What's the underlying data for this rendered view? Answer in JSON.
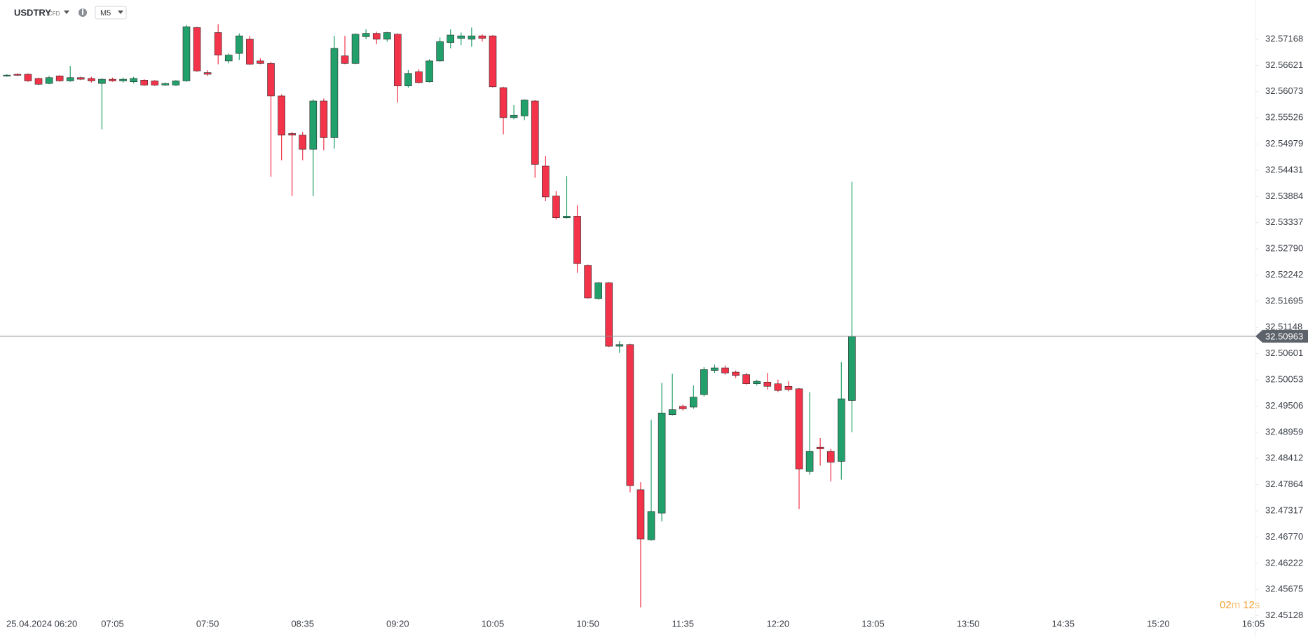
{
  "header": {
    "symbol": "USDTRY",
    "instrument_type": "CFD",
    "timeframe": "M5"
  },
  "countdown": {
    "minutes": "02",
    "minutes_unit": "m",
    "seconds": "12",
    "seconds_unit": "s"
  },
  "chart_data": {
    "type": "candlestick",
    "up_color": "#22a06b",
    "down_color": "#f23349",
    "grid": false,
    "current_price": 32.50963,
    "ylim": [
      32.45093,
      32.57987
    ],
    "yticks": [
      32.57168,
      32.56621,
      32.56073,
      32.55526,
      32.54979,
      32.54431,
      32.53884,
      32.53337,
      {
        "value": 32.5279,
        "label": "32.52790"
      },
      32.52242,
      32.51695,
      32.51148,
      32.50601,
      32.50053,
      32.49506,
      32.48959,
      32.48412,
      32.47864,
      32.47317,
      {
        "value": 32.4677,
        "label": "32.46770"
      },
      32.46222,
      32.45675,
      32.45128
    ],
    "xlim": [
      -0.65,
      118.2
    ],
    "xticks": [
      {
        "value": 1,
        "label": "25.04.2024 06:20"
      },
      {
        "value": 10,
        "label": "07:05"
      },
      {
        "value": 19,
        "label": "07:50"
      },
      {
        "value": 28,
        "label": "08:35"
      },
      {
        "value": 37,
        "label": "09:20"
      },
      {
        "value": 46,
        "label": "10:05"
      },
      {
        "value": 55,
        "label": "10:50"
      },
      {
        "value": 64,
        "label": "11:35"
      },
      {
        "value": 73,
        "label": "12:20"
      },
      {
        "value": 82,
        "label": "13:05"
      },
      {
        "value": 91,
        "label": "13:50"
      },
      {
        "value": 100,
        "label": "14:35"
      },
      {
        "value": 109,
        "label": "15:20"
      },
      {
        "value": 118,
        "label": "16:05"
      }
    ],
    "open": [
      32.56401,
      32.56436,
      32.56436,
      32.56349,
      32.56244,
      32.56401,
      32.56297,
      32.56366,
      32.56349,
      32.56244,
      32.56332,
      32.56297,
      32.56279,
      32.56314,
      32.56297,
      32.5621,
      32.5621,
      32.56297,
      32.57412,
      32.56471,
      32.57307,
      32.56715,
      32.56872,
      32.57168,
      32.56715,
      32.56663,
      32.55983,
      32.55199,
      32.55164,
      32.54868,
      32.55879,
      32.55112,
      32.5682,
      32.56663,
      32.5722,
      32.5729,
      32.57168,
      32.57273,
      32.56192,
      32.56488,
      32.56279,
      32.56715,
      32.57098,
      32.57185,
      32.57168,
      32.57238,
      32.57238,
      32.56157,
      32.5553,
      32.55565,
      32.55879,
      32.54519,
      32.53892,
      32.53439,
      32.53474,
      32.52446,
      32.51749,
      32.5208,
      32.50756,
      32.5079,
      32.47759,
      32.46713,
      32.47271,
      32.49327,
      32.49501,
      32.49484,
      32.49745,
      32.5025,
      32.50303,
      32.50215,
      32.50163,
      32.49971,
      32.50006,
      32.49971,
      32.49919,
      32.49867,
      32.48142,
      32.48647,
      32.4856,
      32.48351,
      32.49623
    ],
    "high": [
      32.56436,
      32.56454,
      32.56454,
      32.56366,
      32.56401,
      32.56419,
      32.5661,
      32.56384,
      32.56384,
      32.56349,
      32.56366,
      32.56366,
      32.56384,
      32.56332,
      32.56314,
      32.56262,
      32.56314,
      32.57464,
      32.57429,
      32.56523,
      32.57482,
      32.56872,
      32.5729,
      32.57238,
      32.56767,
      32.56698,
      32.56018,
      32.55234,
      32.55234,
      32.55913,
      32.55931,
      32.57238,
      32.57238,
      32.5729,
      32.57377,
      32.57325,
      32.57325,
      32.5729,
      32.56523,
      32.56541,
      32.5675,
      32.57203,
      32.57377,
      32.57307,
      32.57412,
      32.57273,
      32.57255,
      32.56175,
      32.55791,
      32.55913,
      32.55896,
      32.54729,
      32.53997,
      32.5431,
      32.537,
      32.52463,
      32.52097,
      32.52097,
      32.5086,
      32.50808,
      32.47915,
      32.49222,
      32.49989,
      32.50181,
      32.49536,
      32.49937,
      32.5032,
      32.50372,
      32.50355,
      32.5025,
      32.50198,
      32.50059,
      32.50198,
      32.50059,
      32.50024,
      32.49884,
      32.49797,
      32.48839,
      32.48612,
      32.50425,
      32.54188
    ],
    "low": [
      32.56384,
      32.56401,
      32.56279,
      32.5621,
      32.56227,
      32.56279,
      32.56279,
      32.56314,
      32.56262,
      32.55286,
      32.56279,
      32.56262,
      32.56244,
      32.56192,
      32.56192,
      32.56192,
      32.56192,
      32.56279,
      32.56488,
      32.56401,
      32.56645,
      32.56663,
      32.56732,
      32.56628,
      32.56645,
      32.54293,
      32.54641,
      32.53892,
      32.54641,
      32.53892,
      32.5485,
      32.54885,
      32.56645,
      32.56645,
      32.57168,
      32.57063,
      32.57116,
      32.55844,
      32.56157,
      32.56244,
      32.56262,
      32.56698,
      32.56976,
      32.57046,
      32.57011,
      32.57116,
      32.56157,
      32.55182,
      32.55495,
      32.55478,
      32.54275,
      32.53788,
      32.53404,
      32.53422,
      32.52289,
      32.51749,
      32.51731,
      32.50738,
      32.50616,
      32.47706,
      32.45302,
      32.46696,
      32.47096,
      32.49309,
      32.49414,
      32.49449,
      32.4971,
      32.50198,
      32.50163,
      32.50093,
      32.49954,
      32.49937,
      32.4985,
      32.49797,
      32.49815,
      32.47358,
      32.48072,
      32.48264,
      32.47933,
      32.47968,
      32.48961
    ],
    "close": [
      32.56419,
      32.56419,
      32.56297,
      32.56227,
      32.56366,
      32.56297,
      32.56366,
      32.56332,
      32.56297,
      32.56332,
      32.56297,
      32.56332,
      32.56349,
      32.5621,
      32.5621,
      32.56244,
      32.56297,
      32.57429,
      32.56506,
      32.56436,
      32.56837,
      32.56837,
      32.57238,
      32.56645,
      32.56663,
      32.55983,
      32.55164,
      32.55164,
      32.54868,
      32.55879,
      32.55112,
      32.56976,
      32.56663,
      32.57273,
      32.5729,
      32.57168,
      32.57307,
      32.56192,
      32.56454,
      32.56262,
      32.56715,
      32.57116,
      32.57255,
      32.57238,
      32.57238,
      32.57185,
      32.56175,
      32.5553,
      32.55582,
      32.55896,
      32.54554,
      32.53875,
      32.53439,
      32.53474,
      32.52481,
      32.51766,
      32.5208,
      32.50756,
      32.5079,
      32.47846,
      32.46731,
      32.47305,
      32.49362,
      32.49431,
      32.49449,
      32.49693,
      32.50268,
      32.50303,
      32.50198,
      32.50146,
      32.49971,
      32.50024,
      32.49919,
      32.49832,
      32.4985,
      32.48194,
      32.4856,
      32.48612,
      32.48334,
      32.49658,
      32.50963
    ]
  }
}
